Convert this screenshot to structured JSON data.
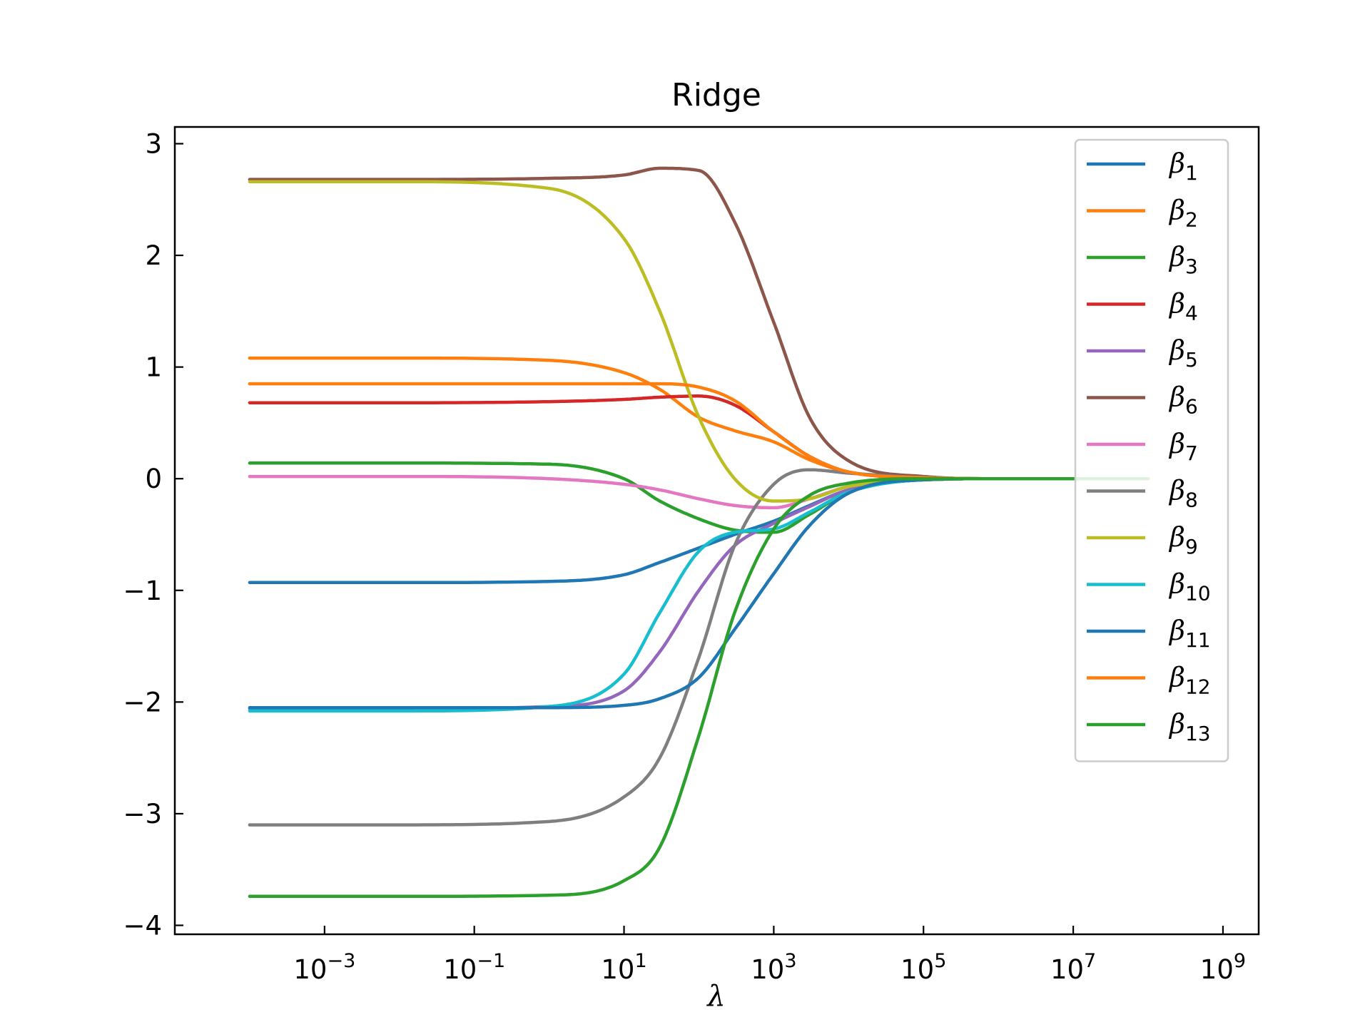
{
  "chart_data": {
    "type": "line",
    "title": "Ridge",
    "xlabel": "λ",
    "ylabel": "",
    "xscale": "log",
    "xlim": [
      1e-05,
      3000000000.0
    ],
    "ylim": [
      -4.08,
      3.15
    ],
    "yticks": [
      3,
      2,
      1,
      0,
      -1,
      -2,
      -3,
      -4
    ],
    "ytick_labels": [
      "3",
      "2",
      "1",
      "0",
      "−1",
      "−2",
      "−3",
      "−4"
    ],
    "xticks": [
      0.001,
      0.1,
      10,
      1000,
      100000,
      10000000,
      1000000000
    ],
    "xtick_labels": [
      {
        "base": "10",
        "exp": "−3"
      },
      {
        "base": "10",
        "exp": "−1"
      },
      {
        "base": "10",
        "exp": "1"
      },
      {
        "base": "10",
        "exp": "3"
      },
      {
        "base": "10",
        "exp": "5"
      },
      {
        "base": "10",
        "exp": "7"
      },
      {
        "base": "10",
        "exp": "9"
      }
    ],
    "legend_position": "upper-right",
    "grid": false,
    "x": [
      0.0001,
      0.01,
      1,
      10,
      30,
      100,
      300,
      1000,
      3000,
      10000,
      100000,
      1000000,
      10000000,
      100000000
    ],
    "series": [
      {
        "name": "β",
        "sub": "1",
        "color": "#1f77b4",
        "values": [
          -0.93,
          -0.93,
          -0.92,
          -0.86,
          -0.75,
          -0.62,
          -0.5,
          -0.38,
          -0.24,
          -0.1,
          -0.01,
          0,
          0,
          0
        ]
      },
      {
        "name": "β",
        "sub": "2",
        "color": "#ff7f0e",
        "values": [
          1.08,
          1.08,
          1.06,
          0.95,
          0.8,
          0.55,
          0.43,
          0.33,
          0.17,
          0.06,
          0.01,
          0,
          0,
          0
        ]
      },
      {
        "name": "β",
        "sub": "3",
        "color": "#2ca02c",
        "values": [
          0.14,
          0.14,
          0.13,
          0.0,
          -0.2,
          -0.36,
          -0.46,
          -0.48,
          -0.32,
          -0.12,
          -0.01,
          0,
          0,
          0
        ]
      },
      {
        "name": "β",
        "sub": "4",
        "color": "#d62728",
        "values": [
          0.68,
          0.68,
          0.69,
          0.71,
          0.73,
          0.74,
          0.66,
          0.42,
          0.2,
          0.06,
          0.01,
          0,
          0,
          0
        ]
      },
      {
        "name": "β",
        "sub": "5",
        "color": "#9467bd",
        "values": [
          -2.06,
          -2.06,
          -2.04,
          -1.9,
          -1.55,
          -1.0,
          -0.6,
          -0.4,
          -0.25,
          -0.1,
          -0.01,
          0,
          0,
          0
        ]
      },
      {
        "name": "β",
        "sub": "6",
        "color": "#8c564b",
        "values": [
          2.68,
          2.68,
          2.69,
          2.72,
          2.78,
          2.76,
          2.3,
          1.4,
          0.55,
          0.16,
          0.02,
          0,
          0,
          0
        ]
      },
      {
        "name": "β",
        "sub": "7",
        "color": "#e377c2",
        "values": [
          0.02,
          0.02,
          0.0,
          -0.05,
          -0.1,
          -0.18,
          -0.24,
          -0.26,
          -0.18,
          -0.07,
          -0.01,
          0,
          0,
          0
        ]
      },
      {
        "name": "β",
        "sub": "8",
        "color": "#7f7f7f",
        "values": [
          -3.1,
          -3.1,
          -3.07,
          -2.85,
          -2.5,
          -1.6,
          -0.6,
          -0.05,
          0.08,
          0.05,
          0.01,
          0,
          0,
          0
        ]
      },
      {
        "name": "β",
        "sub": "9",
        "color": "#bcbd22",
        "values": [
          2.66,
          2.66,
          2.6,
          2.15,
          1.5,
          0.55,
          0.0,
          -0.2,
          -0.18,
          -0.07,
          -0.01,
          0,
          0,
          0
        ]
      },
      {
        "name": "β",
        "sub": "10",
        "color": "#17becf",
        "values": [
          -2.08,
          -2.08,
          -2.04,
          -1.75,
          -1.2,
          -0.65,
          -0.48,
          -0.45,
          -0.3,
          -0.12,
          -0.01,
          0,
          0,
          0
        ]
      },
      {
        "name": "β",
        "sub": "11",
        "color": "#1f77b4",
        "values": [
          -2.05,
          -2.05,
          -2.05,
          -2.03,
          -1.97,
          -1.78,
          -1.35,
          -0.85,
          -0.42,
          -0.13,
          -0.01,
          0,
          0,
          0
        ]
      },
      {
        "name": "β",
        "sub": "12",
        "color": "#ff7f0e",
        "values": [
          0.85,
          0.85,
          0.85,
          0.85,
          0.85,
          0.82,
          0.7,
          0.42,
          0.2,
          0.06,
          0.01,
          0,
          0,
          0
        ]
      },
      {
        "name": "β",
        "sub": "13",
        "color": "#2ca02c",
        "values": [
          -3.74,
          -3.74,
          -3.73,
          -3.6,
          -3.3,
          -2.3,
          -1.2,
          -0.45,
          -0.15,
          -0.04,
          0,
          0,
          0,
          0
        ]
      }
    ]
  }
}
